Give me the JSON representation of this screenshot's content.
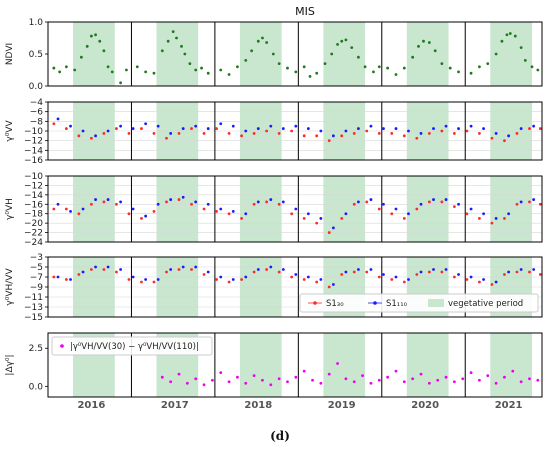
{
  "figure": {
    "title": "MIS",
    "panel_label": "(d)",
    "years": [
      "2016",
      "2017",
      "2018",
      "2019",
      "2020",
      "2021"
    ],
    "x_range": [
      2015.58,
      2021.5
    ],
    "vegetative_periods": [
      [
        2015.88,
        2016.38
      ],
      [
        2016.88,
        2017.38
      ],
      [
        2017.88,
        2018.38
      ],
      [
        2018.88,
        2019.38
      ],
      [
        2019.88,
        2020.38
      ],
      [
        2020.88,
        2021.38
      ]
    ],
    "year_boundaries": [
      2016.58,
      2017.58,
      2018.58,
      2019.58,
      2020.58
    ],
    "colors": {
      "vegetative": "#c9e6cf",
      "ndvi": "#1f7a1f",
      "s1_30": "#ff2a2a",
      "s1_110": "#1a1aff",
      "diff": "#ee00ee"
    }
  },
  "panels": [
    {
      "id": "ndvi",
      "ylabel": "NDVI",
      "ylim": [
        0,
        1
      ],
      "ticks": [
        0.0,
        0.5,
        1.0
      ],
      "tick_labels": [
        "0.0",
        "0.5",
        "1.0"
      ]
    },
    {
      "id": "vv",
      "ylabel": "γ⁰VV",
      "ylim": [
        -16,
        -4
      ],
      "ticks": [
        -16,
        -14,
        -12,
        -10,
        -8,
        -6,
        -4
      ],
      "tick_labels": [
        "−16",
        "−14",
        "−12",
        "−10",
        "−8",
        "−6",
        "−4"
      ]
    },
    {
      "id": "vh",
      "ylabel": "γ⁰VH",
      "ylim": [
        -24,
        -10
      ],
      "ticks": [
        -24,
        -22,
        -20,
        -18,
        -16,
        -14,
        -12,
        -10
      ],
      "tick_labels": [
        "−24",
        "−22",
        "−20",
        "−18",
        "−16",
        "−14",
        "−12",
        "−10"
      ]
    },
    {
      "id": "vhvv",
      "ylabel": "γ⁰VH/VV",
      "ylim": [
        -15,
        -3
      ],
      "ticks": [
        -15,
        -13,
        -11,
        -9,
        -7,
        -5,
        -3
      ],
      "tick_labels": [
        "−15",
        "−13",
        "−11",
        "−9",
        "−7",
        "−5",
        "−3"
      ]
    },
    {
      "id": "diff",
      "ylabel": "|Δγ⁰|",
      "ylim": [
        -0.7,
        3.5
      ],
      "ticks": [
        0.0,
        2.5
      ],
      "tick_labels": [
        "0.0",
        "2.5"
      ]
    }
  ],
  "legend_main": {
    "items": [
      {
        "label": "S1₃₀",
        "type": "dot-line",
        "color": "#ff2a2a"
      },
      {
        "label": "S1₁₁₀",
        "type": "dot-line",
        "color": "#1a1aff"
      },
      {
        "label": "vegetative period",
        "type": "patch",
        "color": "#c9e6cf"
      }
    ]
  },
  "legend_diff": {
    "label": "|γ⁰VH/VV(30) − γ⁰VH/VV(110)|"
  },
  "chart_data": [
    {
      "type": "scatter",
      "panel": "ndvi",
      "series": [
        {
          "name": "NDVI",
          "x": [
            2015.65,
            2015.72,
            2015.8,
            2015.9,
            2015.98,
            2016.05,
            2016.1,
            2016.15,
            2016.2,
            2016.25,
            2016.3,
            2016.35,
            2016.45,
            2016.52,
            2016.65,
            2016.75,
            2016.85,
            2016.95,
            2017.02,
            2017.08,
            2017.12,
            2017.18,
            2017.22,
            2017.28,
            2017.35,
            2017.42,
            2017.5,
            2017.65,
            2017.75,
            2017.85,
            2017.95,
            2018.02,
            2018.1,
            2018.15,
            2018.2,
            2018.28,
            2018.35,
            2018.45,
            2018.55,
            2018.65,
            2018.72,
            2018.8,
            2018.9,
            2018.98,
            2019.05,
            2019.1,
            2019.15,
            2019.22,
            2019.3,
            2019.38,
            2019.48,
            2019.55,
            2019.65,
            2019.75,
            2019.85,
            2019.95,
            2020.02,
            2020.08,
            2020.15,
            2020.22,
            2020.3,
            2020.4,
            2020.5,
            2020.65,
            2020.75,
            2020.85,
            2020.95,
            2021.02,
            2021.08,
            2021.12,
            2021.18,
            2021.25,
            2021.3,
            2021.38,
            2021.45
          ],
          "y": [
            0.28,
            0.22,
            0.3,
            0.25,
            0.45,
            0.62,
            0.78,
            0.8,
            0.7,
            0.55,
            0.3,
            0.22,
            0.05,
            0.25,
            0.3,
            0.22,
            0.2,
            0.55,
            0.7,
            0.85,
            0.75,
            0.62,
            0.5,
            0.35,
            0.25,
            0.28,
            0.2,
            0.25,
            0.18,
            0.3,
            0.4,
            0.55,
            0.7,
            0.75,
            0.68,
            0.5,
            0.35,
            0.28,
            0.22,
            0.3,
            0.15,
            0.2,
            0.35,
            0.5,
            0.65,
            0.7,
            0.72,
            0.6,
            0.45,
            0.3,
            0.22,
            0.3,
            0.28,
            0.18,
            0.28,
            0.45,
            0.62,
            0.7,
            0.68,
            0.55,
            0.35,
            0.28,
            0.22,
            0.2,
            0.3,
            0.35,
            0.5,
            0.7,
            0.8,
            0.82,
            0.78,
            0.6,
            0.4,
            0.3,
            0.25
          ]
        }
      ]
    },
    {
      "type": "scatter",
      "panel": "vv",
      "series": [
        {
          "name": "S1₃₀",
          "x": [
            2015.65,
            2015.8,
            2015.95,
            2016.1,
            2016.25,
            2016.4,
            2016.55,
            2016.7,
            2016.85,
            2017.0,
            2017.15,
            2017.3,
            2017.45,
            2017.6,
            2017.75,
            2017.9,
            2018.05,
            2018.2,
            2018.35,
            2018.5,
            2018.65,
            2018.8,
            2018.95,
            2019.1,
            2019.25,
            2019.4,
            2019.55,
            2019.7,
            2019.85,
            2020.0,
            2020.15,
            2020.3,
            2020.45,
            2020.6,
            2020.75,
            2020.9,
            2021.05,
            2021.2,
            2021.35,
            2021.48
          ],
          "y": [
            -8.5,
            -9.5,
            -11,
            -11.5,
            -10.5,
            -9.5,
            -10.5,
            -9.5,
            -10.5,
            -11.5,
            -10.5,
            -9.5,
            -10.5,
            -9.5,
            -10.5,
            -11,
            -10.5,
            -10,
            -10.5,
            -10,
            -11,
            -11,
            -12,
            -11,
            -10.5,
            -10,
            -10.5,
            -10.5,
            -11,
            -11.5,
            -10.5,
            -10,
            -10.5,
            -10,
            -10.5,
            -11.5,
            -12,
            -10.5,
            -9.5,
            -9.5
          ]
        },
        {
          "name": "S1₁₁₀",
          "x": [
            2015.7,
            2015.85,
            2016.0,
            2016.15,
            2016.3,
            2016.45,
            2016.6,
            2016.75,
            2016.9,
            2017.05,
            2017.2,
            2017.35,
            2017.5,
            2017.65,
            2017.8,
            2017.95,
            2018.1,
            2018.25,
            2018.4,
            2018.55,
            2018.7,
            2018.85,
            2019.0,
            2019.15,
            2019.3,
            2019.45,
            2019.6,
            2019.75,
            2019.9,
            2020.05,
            2020.2,
            2020.35,
            2020.5,
            2020.65,
            2020.8,
            2020.95,
            2021.1,
            2021.25,
            2021.4
          ],
          "y": [
            -7.5,
            -9,
            -10,
            -11,
            -10,
            -9,
            -9.5,
            -8.5,
            -9,
            -10.5,
            -9.5,
            -9,
            -9.5,
            -8.5,
            -9,
            -10,
            -9.5,
            -9,
            -9.5,
            -9,
            -9.5,
            -10,
            -11,
            -10,
            -9.5,
            -9,
            -9.5,
            -9.5,
            -10,
            -10.5,
            -9.5,
            -9,
            -9.5,
            -9,
            -9.5,
            -10.5,
            -11,
            -9.5,
            -9
          ]
        }
      ]
    },
    {
      "type": "scatter",
      "panel": "vh",
      "series": [
        {
          "name": "S1₃₀",
          "x": [
            2015.65,
            2015.8,
            2015.95,
            2016.1,
            2016.25,
            2016.4,
            2016.55,
            2016.7,
            2016.85,
            2017.0,
            2017.15,
            2017.3,
            2017.45,
            2017.6,
            2017.75,
            2017.9,
            2018.05,
            2018.2,
            2018.35,
            2018.5,
            2018.65,
            2018.8,
            2018.95,
            2019.1,
            2019.25,
            2019.4,
            2019.55,
            2019.7,
            2019.85,
            2020.0,
            2020.15,
            2020.3,
            2020.45,
            2020.6,
            2020.75,
            2020.9,
            2021.05,
            2021.2,
            2021.35,
            2021.48
          ],
          "y": [
            -17,
            -17,
            -18,
            -16,
            -15.5,
            -16,
            -18,
            -19,
            -17.5,
            -15.5,
            -15,
            -16,
            -17,
            -17.5,
            -18,
            -19,
            -16,
            -15.5,
            -16,
            -18,
            -19,
            -20,
            -22,
            -19,
            -16,
            -15.5,
            -17,
            -18,
            -19,
            -17,
            -15.5,
            -15.5,
            -16.5,
            -18,
            -19,
            -20,
            -19,
            -16,
            -15.5,
            -16
          ]
        },
        {
          "name": "S1₁₁₀",
          "x": [
            2015.7,
            2015.85,
            2016.0,
            2016.15,
            2016.3,
            2016.45,
            2016.6,
            2016.75,
            2016.9,
            2017.05,
            2017.2,
            2017.35,
            2017.5,
            2017.65,
            2017.8,
            2017.95,
            2018.1,
            2018.25,
            2018.4,
            2018.55,
            2018.7,
            2018.85,
            2019.0,
            2019.15,
            2019.3,
            2019.45,
            2019.6,
            2019.75,
            2019.9,
            2020.05,
            2020.2,
            2020.35,
            2020.5,
            2020.65,
            2020.8,
            2020.95,
            2021.1,
            2021.25,
            2021.4
          ],
          "y": [
            -16,
            -17.5,
            -17,
            -15,
            -15,
            -15.5,
            -17,
            -18.5,
            -16,
            -15,
            -14.5,
            -15.5,
            -16,
            -17,
            -17.5,
            -18,
            -15.5,
            -15,
            -15.5,
            -17,
            -18,
            -19,
            -21,
            -18,
            -15.5,
            -15,
            -16,
            -17,
            -18,
            -16,
            -15,
            -15,
            -16,
            -17,
            -18,
            -19,
            -18,
            -15.5,
            -15
          ]
        }
      ]
    },
    {
      "type": "scatter",
      "panel": "vhvv",
      "series": [
        {
          "name": "S1₃₀",
          "x": [
            2015.65,
            2015.8,
            2015.95,
            2016.1,
            2016.25,
            2016.4,
            2016.55,
            2016.7,
            2016.85,
            2017.0,
            2017.15,
            2017.3,
            2017.45,
            2017.6,
            2017.75,
            2017.9,
            2018.05,
            2018.2,
            2018.35,
            2018.5,
            2018.65,
            2018.8,
            2018.95,
            2019.1,
            2019.25,
            2019.4,
            2019.55,
            2019.7,
            2019.85,
            2020.0,
            2020.15,
            2020.3,
            2020.45,
            2020.6,
            2020.75,
            2020.9,
            2021.05,
            2021.2,
            2021.35,
            2021.48
          ],
          "y": [
            -7,
            -7.5,
            -6.5,
            -5.5,
            -5.5,
            -6,
            -7.5,
            -8,
            -8,
            -6,
            -5.5,
            -5.5,
            -6.5,
            -7.5,
            -8,
            -7.5,
            -6,
            -5.5,
            -6,
            -7,
            -7.5,
            -8,
            -9,
            -6.5,
            -6,
            -6,
            -7,
            -7.5,
            -8,
            -6.5,
            -6,
            -6,
            -7,
            -7.5,
            -8,
            -8.5,
            -6.5,
            -6,
            -6,
            -6.5
          ]
        },
        {
          "name": "S1₁₁₀",
          "x": [
            2015.7,
            2015.85,
            2016.0,
            2016.15,
            2016.3,
            2016.45,
            2016.6,
            2016.75,
            2016.9,
            2017.05,
            2017.2,
            2017.35,
            2017.5,
            2017.65,
            2017.8,
            2017.95,
            2018.1,
            2018.25,
            2018.4,
            2018.55,
            2018.7,
            2018.85,
            2019.0,
            2019.15,
            2019.3,
            2019.45,
            2019.6,
            2019.75,
            2019.9,
            2020.05,
            2020.2,
            2020.35,
            2020.5,
            2020.65,
            2020.8,
            2020.95,
            2021.1,
            2021.25,
            2021.4
          ],
          "y": [
            -7,
            -7.5,
            -6,
            -5,
            -5,
            -5.5,
            -7,
            -7.5,
            -7.5,
            -5.5,
            -5,
            -5,
            -6,
            -7,
            -7.5,
            -7,
            -5.5,
            -5,
            -5.5,
            -6.5,
            -7,
            -7.5,
            -8.5,
            -6,
            -5.5,
            -5.5,
            -6.5,
            -7,
            -7.5,
            -6,
            -5.5,
            -5.5,
            -6.5,
            -7,
            -7.5,
            -8,
            -6,
            -5.5,
            -5.5
          ]
        }
      ]
    },
    {
      "type": "scatter",
      "panel": "diff",
      "series": [
        {
          "name": "|γ⁰VH/VV(30) − γ⁰VH/VV(110)|",
          "x": [
            2016.95,
            2017.05,
            2017.15,
            2017.25,
            2017.35,
            2017.45,
            2017.55,
            2017.65,
            2017.75,
            2017.85,
            2017.95,
            2018.05,
            2018.15,
            2018.25,
            2018.35,
            2018.45,
            2018.55,
            2018.65,
            2018.75,
            2018.85,
            2018.95,
            2019.05,
            2019.15,
            2019.25,
            2019.35,
            2019.45,
            2019.55,
            2019.65,
            2019.75,
            2019.85,
            2019.95,
            2020.05,
            2020.15,
            2020.25,
            2020.35,
            2020.45,
            2020.55,
            2020.65,
            2020.75,
            2020.85,
            2020.95,
            2021.05,
            2021.15,
            2021.25,
            2021.35,
            2021.45
          ],
          "y": [
            0.6,
            0.3,
            0.8,
            0.2,
            0.5,
            0.1,
            0.4,
            0.9,
            0.3,
            0.6,
            0.2,
            0.7,
            0.4,
            0.1,
            0.5,
            0.3,
            0.6,
            1.0,
            0.4,
            0.2,
            0.8,
            1.5,
            0.5,
            0.3,
            0.7,
            0.2,
            0.4,
            0.6,
            1.0,
            0.3,
            0.5,
            0.8,
            0.2,
            0.4,
            0.6,
            0.3,
            0.5,
            0.9,
            0.4,
            0.7,
            0.2,
            0.6,
            1.0,
            0.3,
            0.5,
            0.4
          ]
        }
      ]
    }
  ]
}
